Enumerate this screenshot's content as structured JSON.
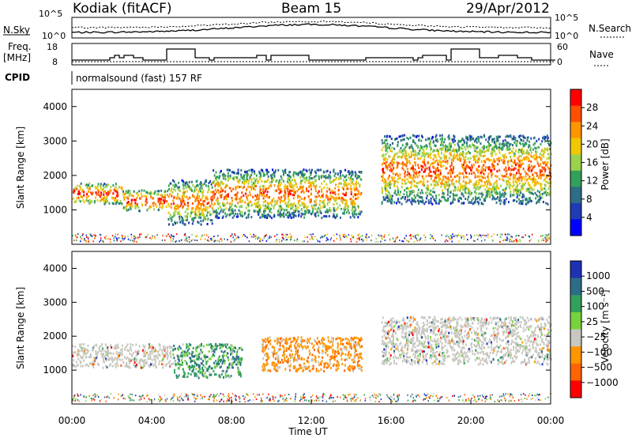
{
  "header": {
    "station": "Kodiak (fitACF)",
    "beam": "Beam 15",
    "date": "29/Apr/2012"
  },
  "strip_panels": {
    "nsky_label": "N.Sky",
    "nsky_ticks": [
      "10^5",
      "10^0"
    ],
    "nsearch_label": "N.Search",
    "nsearch_ticks": [
      "10^5",
      "10^0"
    ],
    "freq_label_line1": "Freq.",
    "freq_label_line2": "[MHz]",
    "freq_ticks": [
      "18",
      "8"
    ],
    "nave_label": "Nave",
    "nave_ticks": [
      "60",
      "0"
    ],
    "cpid_label": "CPID",
    "cpid_text": "normalsound (fast) 157 RF"
  },
  "chart_data": [
    {
      "type": "heatmap",
      "panel": "power",
      "ylabel": "Slant Range [km]",
      "ylim": [
        0,
        4500
      ],
      "yticks": [
        1000,
        2000,
        3000,
        4000
      ],
      "xlim": [
        "00:00",
        "24:00"
      ],
      "colorbar_label": "Power [dB]",
      "colorbar_ticks": [
        "28",
        "24",
        "20",
        "16",
        "12",
        "8",
        "4"
      ],
      "colorbar_colors": [
        "#ff0000",
        "#ff5000",
        "#ff9600",
        "#f0c800",
        "#9bd24b",
        "#32a05a",
        "#2d6e87",
        "#1e3cb4",
        "#0000ff"
      ],
      "scatter_bands": [
        {
          "start_h": 0.0,
          "end_h": 2.5,
          "range_km": [
            1200,
            1800
          ],
          "level": "high"
        },
        {
          "start_h": 2.5,
          "end_h": 4.8,
          "range_km": [
            1000,
            1600
          ],
          "level": "high"
        },
        {
          "start_h": 4.8,
          "end_h": 7.0,
          "range_km": [
            600,
            1900
          ],
          "level": "mid"
        },
        {
          "start_h": 7.0,
          "end_h": 14.5,
          "range_km": [
            800,
            2200
          ],
          "level": "mid"
        },
        {
          "start_h": 15.5,
          "end_h": 24.0,
          "range_km": [
            1200,
            3200
          ],
          "level": "mid"
        }
      ]
    },
    {
      "type": "heatmap",
      "panel": "velocity",
      "ylabel": "Slant Range [km]",
      "ylim": [
        0,
        4500
      ],
      "yticks": [
        1000,
        2000,
        3000,
        4000
      ],
      "xlabel": "Time UT",
      "xticks": [
        "00:00",
        "04:00",
        "08:00",
        "12:00",
        "16:00",
        "20:00",
        "00:00"
      ],
      "colorbar_label": "Velocity [m s⁻¹]",
      "colorbar_ticks": [
        "1000",
        "500",
        "100",
        "25",
        "−25",
        "−100",
        "−500",
        "−1000"
      ],
      "colorbar_colors": [
        "#1e32b4",
        "#2d6e87",
        "#32a05a",
        "#78d23c",
        "#c8c8c0",
        "#ff9600",
        "#ff6400",
        "#ff0000"
      ],
      "scatter_bands": [
        {
          "start_h": 0.0,
          "end_h": 5.0,
          "range_km": [
            1100,
            1800
          ],
          "velocity": "ground"
        },
        {
          "start_h": 5.0,
          "end_h": 8.5,
          "range_km": [
            800,
            1800
          ],
          "velocity": "positive"
        },
        {
          "start_h": 9.5,
          "end_h": 14.5,
          "range_km": [
            1000,
            2000
          ],
          "velocity": "negative"
        },
        {
          "start_h": 15.5,
          "end_h": 24.0,
          "range_km": [
            1200,
            2600
          ],
          "velocity": "ground"
        }
      ]
    }
  ]
}
